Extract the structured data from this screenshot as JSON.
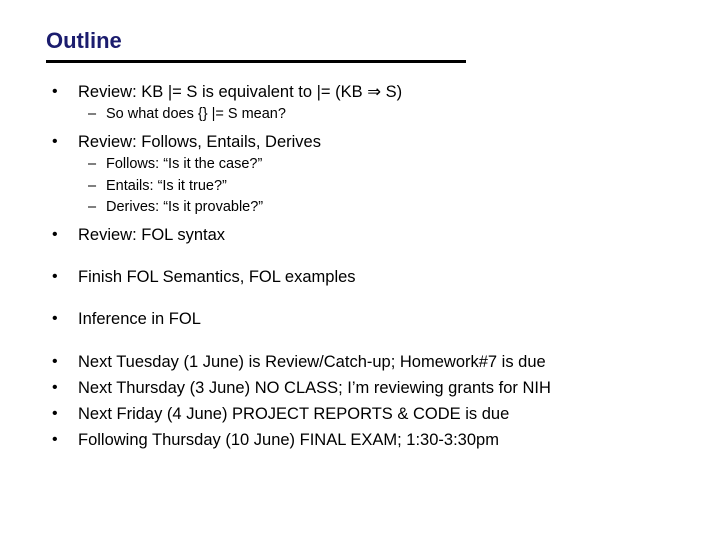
{
  "title": "Outline",
  "colors": {
    "title": "#1b1c6e",
    "text": "#000000",
    "background": "#ffffff",
    "rule": "#000000"
  },
  "typography": {
    "title_font": "Comic Sans MS",
    "body_font": "Verdana",
    "title_size_pt": 22,
    "bullet_size_pt": 16.5,
    "sub_size_pt": 14.5
  },
  "bullets": [
    {
      "text": "Review:  KB |= S  is equivalent to  |= (KB ⇒ S)",
      "sub": [
        "So what does {} |= S  mean?"
      ]
    },
    {
      "text": "Review:  Follows, Entails, Derives",
      "sub": [
        "Follows:  “Is it the case?”",
        "Entails: “Is it true?”",
        "Derives: “Is it provable?”"
      ]
    },
    {
      "text": "Review:  FOL syntax",
      "gap_after": true
    },
    {
      "text": "Finish FOL Semantics, FOL examples",
      "gap_after": true
    },
    {
      "text": "Inference in FOL",
      "gap_after": true
    },
    {
      "text": "Next Tuesday (1 June) is Review/Catch-up; Homework#7 is due"
    },
    {
      "text": "Next Thursday (3 June) NO CLASS; I’m reviewing grants for NIH"
    },
    {
      "text": "Next Friday (4 June) PROJECT REPORTS & CODE is due"
    },
    {
      "text": "Following Thursday (10 June) FINAL EXAM; 1:30-3:30pm"
    }
  ]
}
